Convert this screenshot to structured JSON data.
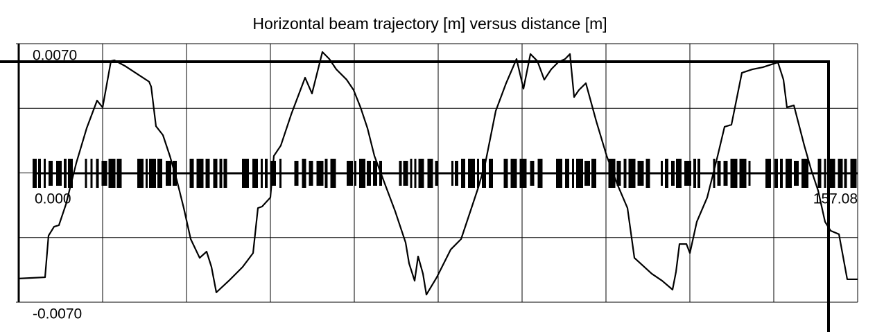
{
  "chart_data": {
    "type": "line",
    "title": "Horizontal beam trajectory [m] versus distance [m]",
    "color": "#000000",
    "grid": true,
    "xlim": [
      0,
      157.08
    ],
    "xticks": [
      {
        "value": 0,
        "label": "0.000"
      },
      {
        "value": 157.08,
        "label": "157.08"
      }
    ],
    "ylim": [
      -0.007,
      0.007
    ],
    "yticks": [
      {
        "value": 0.007,
        "label": "0.0070"
      },
      {
        "value": -0.007,
        "label": "-0.0070"
      }
    ],
    "x": [
      0,
      4.93,
      5.58,
      6.62,
      7.53,
      8.83,
      10.78,
      12.72,
      14.67,
      15.71,
      17.27,
      17.92,
      19.86,
      22.46,
      24.41,
      24.8,
      25.7,
      27.0,
      28.3,
      29.6,
      30.9,
      32.2,
      33.88,
      35.18,
      36.09,
      37.0,
      39.34,
      41.93,
      43.88,
      44.79,
      45.57,
      47.12,
      47.77,
      49.07,
      51.02,
      53.62,
      54.91,
      56.86,
      58.16,
      59.46,
      61.4,
      62.7,
      64.0,
      65.3,
      66.6,
      68.54,
      70.49,
      72.44,
      73.09,
      74.13,
      74.78,
      75.69,
      76.33,
      78.28,
      80.88,
      82.83,
      84.77,
      86.07,
      87.37,
      89.32,
      91.26,
      93.21,
      94.51,
      95.81,
      97.11,
      98.4,
      99.7,
      101.0,
      102.3,
      103.21,
      103.99,
      104.89,
      106.19,
      108.14,
      110.09,
      112.03,
      113.98,
      115.28,
      118.53,
      120.47,
      122.42,
      123.07,
      123.72,
      125.02,
      125.67,
      126.96,
      128.91,
      130.86,
      132.16,
      133.45,
      135.4,
      137.35,
      139.3,
      142.15,
      143.19,
      143.84,
      145.14,
      147.09,
      148.38,
      149.68,
      150.98,
      152.02,
      153.58,
      155.13,
      157.08
    ],
    "values": [
      -0.00572,
      -0.00565,
      -0.0034,
      -0.00291,
      -0.00283,
      -0.00171,
      0.00054,
      0.00242,
      0.00392,
      0.00355,
      0.00606,
      0.0061,
      0.0058,
      0.00531,
      0.00494,
      0.00467,
      0.00253,
      0.00205,
      0.00092,
      -0.00039,
      -0.0019,
      -0.00358,
      -0.0046,
      -0.00426,
      -0.00509,
      -0.00647,
      -0.00584,
      -0.00509,
      -0.00434,
      -0.0019,
      -0.00182,
      -0.00133,
      0.00092,
      0.00148,
      0.00317,
      0.00516,
      0.0043,
      0.00655,
      0.00617,
      0.00561,
      0.00505,
      0.00449,
      0.00355,
      0.00242,
      0.00092,
      -0.00058,
      -0.00208,
      -0.00377,
      -0.0049,
      -0.00584,
      -0.00452,
      -0.00546,
      -0.00659,
      -0.00565,
      -0.00415,
      -0.00358,
      -0.0019,
      -0.00077,
      0.00054,
      0.00336,
      0.00486,
      0.00617,
      0.00456,
      0.00644,
      0.00606,
      0.00505,
      0.00561,
      0.00599,
      0.00617,
      0.00644,
      0.00411,
      0.00449,
      0.00486,
      0.0028,
      0.00092,
      -0.00058,
      -0.0019,
      -0.0046,
      -0.00546,
      -0.00584,
      -0.00632,
      -0.00535,
      -0.00385,
      -0.00385,
      -0.00434,
      -0.00265,
      -0.00133,
      0.00092,
      0.0025,
      0.00261,
      0.00542,
      0.00561,
      0.00572,
      0.00599,
      0.00505,
      0.00355,
      0.00366,
      0.00148,
      0.00017,
      -0.00096,
      -0.00265,
      -0.00313,
      -0.00332,
      -0.00576,
      -0.00576
    ]
  }
}
